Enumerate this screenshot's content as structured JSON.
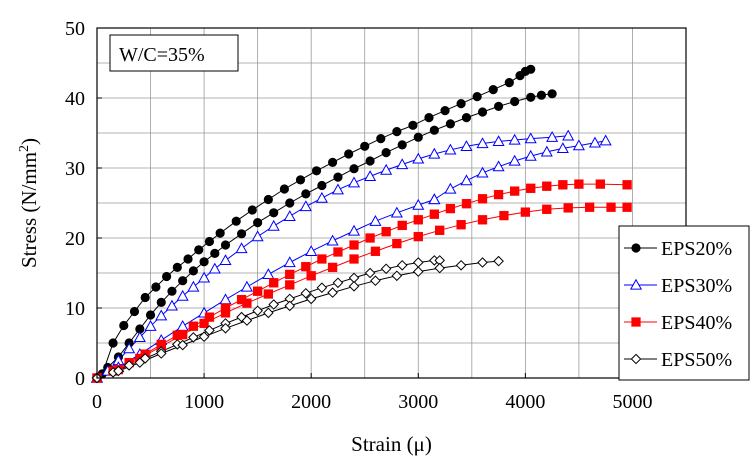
{
  "chart_data": {
    "type": "scatter",
    "xlabel": "Strain (μ)",
    "ylabel": "Stress (N/mm²)",
    "xlim": [
      0,
      5500
    ],
    "ylim": [
      0,
      50
    ],
    "xticks": [
      "0",
      "1000",
      "2000",
      "3000",
      "4000",
      "5000"
    ],
    "yticks": [
      "0",
      "10",
      "20",
      "30",
      "40",
      "50"
    ],
    "grid": true,
    "legend_position": "right",
    "annotation": "W/C=35%",
    "series": [
      {
        "name": "EPS20%",
        "color": "#000000",
        "marker": "filled-circle",
        "curves": [
          {
            "points": [
              [
                0,
                0
              ],
              [
                50,
                0.6
              ],
              [
                150,
                5
              ],
              [
                250,
                7.5
              ],
              [
                350,
                9.5
              ],
              [
                450,
                11.5
              ],
              [
                550,
                13
              ],
              [
                650,
                14.5
              ],
              [
                750,
                15.8
              ],
              [
                850,
                17
              ],
              [
                950,
                18.3
              ],
              [
                1050,
                19.5
              ],
              [
                1150,
                20.7
              ],
              [
                1300,
                22.4
              ],
              [
                1450,
                24
              ],
              [
                1600,
                25.5
              ],
              [
                1750,
                27
              ],
              [
                1900,
                28.3
              ],
              [
                2050,
                29.6
              ],
              [
                2200,
                30.8
              ],
              [
                2350,
                32
              ],
              [
                2500,
                33.1
              ],
              [
                2650,
                34.2
              ],
              [
                2800,
                35.2
              ],
              [
                2950,
                36.1
              ],
              [
                3100,
                37.2
              ],
              [
                3250,
                38.2
              ],
              [
                3400,
                39.2
              ],
              [
                3550,
                40.2
              ],
              [
                3700,
                41.2
              ],
              [
                3850,
                42.2
              ],
              [
                3950,
                43.2
              ],
              [
                4000,
                43.8
              ],
              [
                4050,
                44.1
              ]
            ]
          },
          {
            "points": [
              [
                0,
                0
              ],
              [
                100,
                1.5
              ],
              [
                200,
                3
              ],
              [
                300,
                5
              ],
              [
                400,
                7
              ],
              [
                500,
                9
              ],
              [
                600,
                10.8
              ],
              [
                700,
                12.4
              ],
              [
                800,
                13.9
              ],
              [
                900,
                15.3
              ],
              [
                1000,
                16.6
              ],
              [
                1100,
                17.8
              ],
              [
                1200,
                19
              ],
              [
                1350,
                20.6
              ],
              [
                1500,
                22.2
              ],
              [
                1650,
                23.6
              ],
              [
                1800,
                25
              ],
              [
                1950,
                26.3
              ],
              [
                2100,
                27.5
              ],
              [
                2250,
                28.7
              ],
              [
                2400,
                29.9
              ],
              [
                2550,
                31
              ],
              [
                2700,
                32.2
              ],
              [
                2850,
                33.3
              ],
              [
                3000,
                34.4
              ],
              [
                3150,
                35.4
              ],
              [
                3300,
                36.3
              ],
              [
                3450,
                37.2
              ],
              [
                3600,
                38
              ],
              [
                3750,
                38.8
              ],
              [
                3900,
                39.5
              ],
              [
                4050,
                40.1
              ],
              [
                4150,
                40.4
              ],
              [
                4250,
                40.6
              ]
            ]
          }
        ]
      },
      {
        "name": "EPS30%",
        "color": "#0000ff",
        "marker": "open-triangle",
        "curves": [
          {
            "points": [
              [
                0,
                0
              ],
              [
                100,
                1
              ],
              [
                200,
                2.5
              ],
              [
                300,
                4.2
              ],
              [
                400,
                5.8
              ],
              [
                500,
                7.4
              ],
              [
                600,
                8.9
              ],
              [
                700,
                10.3
              ],
              [
                800,
                11.7
              ],
              [
                900,
                13
              ],
              [
                1000,
                14.3
              ],
              [
                1100,
                15.6
              ],
              [
                1200,
                16.8
              ],
              [
                1350,
                18.5
              ],
              [
                1500,
                20.2
              ],
              [
                1650,
                21.7
              ],
              [
                1800,
                23.1
              ],
              [
                1950,
                24.5
              ],
              [
                2100,
                25.7
              ],
              [
                2250,
                26.9
              ],
              [
                2400,
                27.9
              ],
              [
                2550,
                28.8
              ],
              [
                2700,
                29.7
              ],
              [
                2850,
                30.5
              ],
              [
                3000,
                31.3
              ],
              [
                3150,
                32
              ],
              [
                3300,
                32.6
              ],
              [
                3450,
                33.1
              ],
              [
                3600,
                33.5
              ],
              [
                3750,
                33.8
              ],
              [
                3900,
                34
              ],
              [
                4050,
                34.2
              ],
              [
                4250,
                34.4
              ],
              [
                4400,
                34.6
              ]
            ]
          },
          {
            "points": [
              [
                0,
                0
              ],
              [
                200,
                1.5
              ],
              [
                400,
                3.4
              ],
              [
                600,
                5.4
              ],
              [
                800,
                7.4
              ],
              [
                1000,
                9.3
              ],
              [
                1200,
                11.2
              ],
              [
                1400,
                13
              ],
              [
                1600,
                14.8
              ],
              [
                1800,
                16.5
              ],
              [
                2000,
                18.1
              ],
              [
                2200,
                19.6
              ],
              [
                2400,
                21
              ],
              [
                2600,
                22.4
              ],
              [
                2800,
                23.6
              ],
              [
                3000,
                24.7
              ],
              [
                3150,
                25.5
              ]
            ]
          },
          {
            "points": [
              [
                3150,
                25.5
              ],
              [
                3300,
                27
              ],
              [
                3450,
                28.2
              ],
              [
                3600,
                29.3
              ],
              [
                3750,
                30.2
              ],
              [
                3900,
                31
              ],
              [
                4050,
                31.7
              ],
              [
                4200,
                32.3
              ],
              [
                4350,
                32.8
              ],
              [
                4500,
                33.2
              ],
              [
                4650,
                33.6
              ],
              [
                4750,
                33.9
              ]
            ]
          }
        ]
      },
      {
        "name": "EPS40%",
        "color": "#ff0000",
        "marker": "filled-square",
        "curves": [
          {
            "points": [
              [
                0,
                0
              ],
              [
                150,
                1
              ],
              [
                300,
                2.2
              ],
              [
                450,
                3.4
              ],
              [
                600,
                4.8
              ],
              [
                750,
                6.1
              ],
              [
                900,
                7.4
              ],
              [
                1050,
                8.7
              ],
              [
                1200,
                10
              ],
              [
                1350,
                11.2
              ],
              [
                1500,
                12.4
              ],
              [
                1650,
                13.6
              ],
              [
                1800,
                14.8
              ],
              [
                1950,
                15.9
              ],
              [
                2100,
                17
              ],
              [
                2250,
                18
              ],
              [
                2400,
                19
              ],
              [
                2550,
                20
              ],
              [
                2700,
                20.9
              ],
              [
                2850,
                21.8
              ],
              [
                3000,
                22.6
              ],
              [
                3150,
                23.4
              ],
              [
                3300,
                24.2
              ],
              [
                3450,
                24.9
              ],
              [
                3600,
                25.6
              ],
              [
                3750,
                26.2
              ],
              [
                3900,
                26.7
              ],
              [
                4050,
                27.1
              ],
              [
                4200,
                27.4
              ],
              [
                4350,
                27.6
              ],
              [
                4500,
                27.7
              ],
              [
                4700,
                27.7
              ],
              [
                4950,
                27.6
              ]
            ]
          },
          {
            "points": [
              [
                0,
                0
              ],
              [
                200,
                1.2
              ],
              [
                400,
                2.8
              ],
              [
                600,
                4.5
              ],
              [
                800,
                6.2
              ],
              [
                1000,
                7.8
              ],
              [
                1200,
                9.3
              ],
              [
                1400,
                10.7
              ],
              [
                1600,
                12
              ],
              [
                1800,
                13.3
              ],
              [
                2000,
                14.6
              ],
              [
                2200,
                15.8
              ],
              [
                2400,
                17
              ],
              [
                2600,
                18.1
              ],
              [
                2800,
                19.2
              ],
              [
                3000,
                20.2
              ],
              [
                3200,
                21.1
              ],
              [
                3400,
                21.9
              ],
              [
                3600,
                22.6
              ],
              [
                3800,
                23.2
              ],
              [
                4000,
                23.7
              ],
              [
                4200,
                24.1
              ],
              [
                4400,
                24.3
              ],
              [
                4600,
                24.4
              ],
              [
                4800,
                24.4
              ],
              [
                4950,
                24.4
              ]
            ]
          }
        ]
      },
      {
        "name": "EPS50%",
        "color": "#000000",
        "marker": "open-diamond",
        "curves": [
          {
            "points": [
              [
                0,
                0
              ],
              [
                150,
                0.8
              ],
              [
                300,
                1.8
              ],
              [
                450,
                2.8
              ],
              [
                600,
                3.8
              ],
              [
                750,
                4.8
              ],
              [
                900,
                5.8
              ],
              [
                1050,
                6.8
              ],
              [
                1200,
                7.8
              ],
              [
                1350,
                8.7
              ],
              [
                1500,
                9.6
              ],
              [
                1650,
                10.5
              ],
              [
                1800,
                11.3
              ],
              [
                1950,
                12.1
              ],
              [
                2100,
                12.9
              ],
              [
                2250,
                13.6
              ],
              [
                2400,
                14.3
              ],
              [
                2550,
                15
              ],
              [
                2700,
                15.6
              ],
              [
                2850,
                16.1
              ],
              [
                3000,
                16.5
              ],
              [
                3150,
                16.8
              ],
              [
                3200,
                16.8
              ]
            ]
          },
          {
            "points": [
              [
                0,
                0
              ],
              [
                200,
                1
              ],
              [
                400,
                2.2
              ],
              [
                600,
                3.5
              ],
              [
                800,
                4.7
              ],
              [
                1000,
                5.9
              ],
              [
                1200,
                7.1
              ],
              [
                1400,
                8.2
              ],
              [
                1600,
                9.3
              ],
              [
                1800,
                10.3
              ],
              [
                2000,
                11.3
              ],
              [
                2200,
                12.2
              ],
              [
                2400,
                13.1
              ],
              [
                2600,
                13.9
              ],
              [
                2800,
                14.6
              ],
              [
                3000,
                15.2
              ],
              [
                3200,
                15.7
              ],
              [
                3400,
                16.1
              ],
              [
                3600,
                16.5
              ],
              [
                3750,
                16.7
              ]
            ]
          }
        ]
      }
    ]
  }
}
